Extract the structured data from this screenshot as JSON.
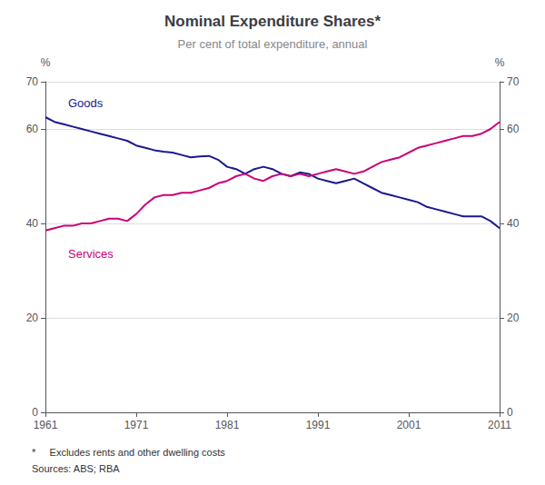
{
  "chart_data": {
    "type": "line",
    "title": "Nominal Expenditure Shares*",
    "subtitle": "Per cent of total expenditure, annual",
    "ylabel": "%",
    "y2label": "%",
    "footnote": "*     Excludes rents and other dwelling costs",
    "sources": "Sources: ABS; RBA",
    "x": [
      1961,
      1962,
      1963,
      1964,
      1965,
      1966,
      1967,
      1968,
      1969,
      1970,
      1971,
      1972,
      1973,
      1974,
      1975,
      1976,
      1977,
      1978,
      1979,
      1980,
      1981,
      1982,
      1983,
      1984,
      1985,
      1986,
      1987,
      1988,
      1989,
      1990,
      1991,
      1992,
      1993,
      1994,
      1995,
      1996,
      1997,
      1998,
      1999,
      2000,
      2001,
      2002,
      2003,
      2004,
      2005,
      2006,
      2007,
      2008,
      2009,
      2010,
      2011
    ],
    "series": [
      {
        "name": "Goods",
        "color": "#1a1a8c",
        "values": [
          62.5,
          61.5,
          61.0,
          60.5,
          60.0,
          59.5,
          59.0,
          58.5,
          58.0,
          57.5,
          56.5,
          56.0,
          55.5,
          55.2,
          55.0,
          54.5,
          54.0,
          54.2,
          54.3,
          53.5,
          52.0,
          51.5,
          50.5,
          51.5,
          52.0,
          51.5,
          50.5,
          50.0,
          50.8,
          50.5,
          49.5,
          49.0,
          48.5,
          49.0,
          49.5,
          48.5,
          47.5,
          46.5,
          46.0,
          45.5,
          45.0,
          44.5,
          43.5,
          43.0,
          42.5,
          42.0,
          41.5,
          41.5,
          41.5,
          40.5,
          39.0
        ]
      },
      {
        "name": "Services",
        "color": "#cc0077",
        "values": [
          38.5,
          39.0,
          39.5,
          39.5,
          40.0,
          40.0,
          40.5,
          41.0,
          41.0,
          40.5,
          42.0,
          44.0,
          45.5,
          46.0,
          46.0,
          46.5,
          46.5,
          47.0,
          47.5,
          48.5,
          49.0,
          50.0,
          50.5,
          49.5,
          49.0,
          50.0,
          50.5,
          50.0,
          50.5,
          50.0,
          50.5,
          51.0,
          51.5,
          51.0,
          50.5,
          51.0,
          52.0,
          53.0,
          53.5,
          54.0,
          55.0,
          56.0,
          56.5,
          57.0,
          57.5,
          58.0,
          58.5,
          58.5,
          59.0,
          60.0,
          61.5
        ]
      }
    ],
    "annotations": [
      {
        "text": "Goods",
        "x": 1963.5,
        "y": 65.5,
        "color": "#1a1a8c"
      },
      {
        "text": "Services",
        "x": 1963.5,
        "y": 33.5,
        "color": "#cc0077"
      }
    ],
    "xlim": [
      1961,
      2011
    ],
    "xticks": [
      1961,
      1971,
      1981,
      1991,
      2001,
      2011
    ],
    "ylim": [
      0,
      70
    ],
    "yticks": [
      0,
      20,
      40,
      60
    ],
    "y2lim": [
      0,
      70
    ],
    "y2ticks": [
      0,
      20,
      40,
      60
    ],
    "grid": true
  }
}
